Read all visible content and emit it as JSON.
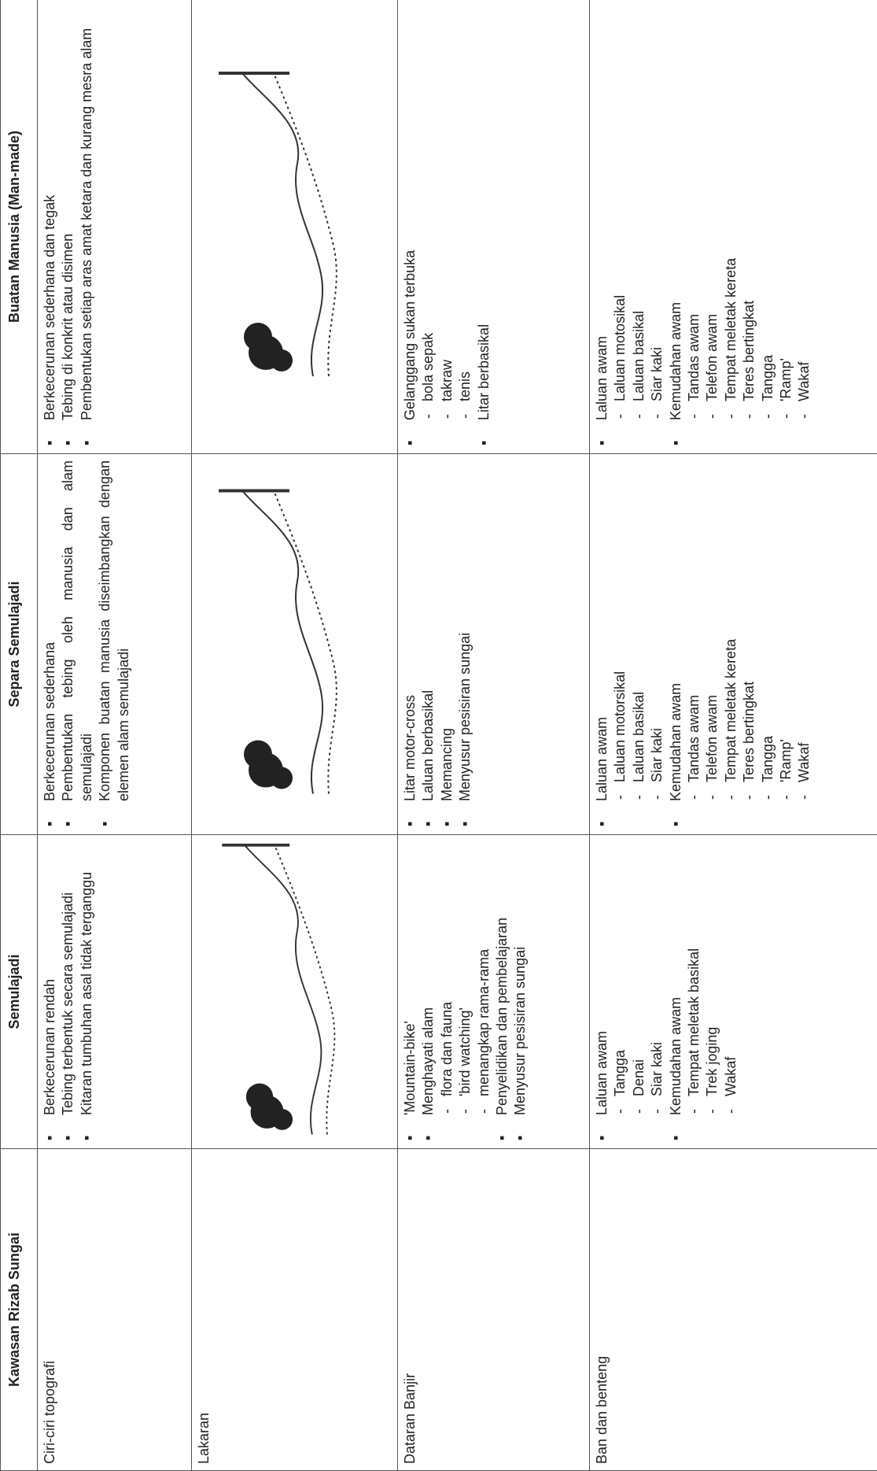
{
  "table": {
    "headers": [
      "Kawasan Rizab Sungai",
      "Semulajadi",
      "Separa Semulajadi",
      "Buatan Manusia (Man-made)"
    ],
    "rows": [
      {
        "label": "Ciri-ciri topografi",
        "cells": [
          {
            "items": [
              {
                "text": "Berkecerunan rendah"
              },
              {
                "text": "Tebing terbentuk secara semulajadi"
              },
              {
                "text": "Kitaran tumbuhan asal tidak terganggu"
              }
            ]
          },
          {
            "items": [
              {
                "text": "Berkecerunan sederhana"
              },
              {
                "text": "Pembentukan tebing oleh manusia dan alam semulajadi"
              },
              {
                "text": "Komponen buatan manusia diseimbangkan dengan elemen alam semulajadi"
              }
            ]
          },
          {
            "items": [
              {
                "text": "Berkecerunan sederhana dan tegak"
              },
              {
                "text": "Tebing di konkrit atau disimen"
              },
              {
                "text": "Pembentukan setiap aras amat ketara dan kurang mesra alam"
              }
            ]
          }
        ]
      },
      {
        "label": "Lakaran"
      },
      {
        "label": "Dataran Banjir",
        "cells": [
          {
            "items": [
              {
                "text": "'Mountain-bike'"
              },
              {
                "text": "Menghayati alam",
                "sub": [
                  "flora dan fauna",
                  "'bird watching'",
                  "menangkap rama-rama"
                ]
              },
              {
                "text": "Penyelidikan dan pembelajaran"
              },
              {
                "text": "Menyusur pesisiran sungai"
              }
            ]
          },
          {
            "items": [
              {
                "text": "Litar motor-cross"
              },
              {
                "text": "Laluan berbasikal"
              },
              {
                "text": "Memancing"
              },
              {
                "text": "Menyusur pesisiran sungai"
              }
            ]
          },
          {
            "items": [
              {
                "text": "Gelanggang sukan terbuka",
                "sub": [
                  "bola sepak",
                  "takraw",
                  "tenis"
                ]
              },
              {
                "text": "Litar berbasikal"
              }
            ]
          }
        ]
      },
      {
        "label": "Ban dan benteng",
        "cells": [
          {
            "items": [
              {
                "text": "Laluan awam",
                "sub": [
                  "Tangga",
                  "Denai",
                  "Siar kaki"
                ]
              },
              {
                "text": "Kemudahan awam",
                "sub": [
                  "Tempat meletak basikal",
                  "Trek joging",
                  "Wakaf"
                ]
              }
            ]
          },
          {
            "items": [
              {
                "text": "Laluan awam",
                "sub": [
                  "Laluan motorsikal",
                  "Laluan basikal",
                  "Siar kaki"
                ]
              },
              {
                "text": "Kemudahan awam",
                "sub": [
                  "Tandas awam",
                  "Telefon awam",
                  "Tempat meletak kereta",
                  "Teres bertingkat",
                  "Tangga",
                  "'Ramp'",
                  "Wakaf"
                ]
              }
            ]
          },
          {
            "items": [
              {
                "text": "Laluan awam",
                "sub": [
                  "Laluan motosikal",
                  "Laluan basikal",
                  "Siar kaki"
                ]
              },
              {
                "text": "Kemudahan awam",
                "sub": [
                  "Tandas awam",
                  "Telefon awam",
                  "Tempat meletak kereta",
                  "Teres bertingkat",
                  "Tangga",
                  "'Ramp'",
                  "Wakaf"
                ]
              }
            ]
          }
        ]
      }
    ]
  }
}
